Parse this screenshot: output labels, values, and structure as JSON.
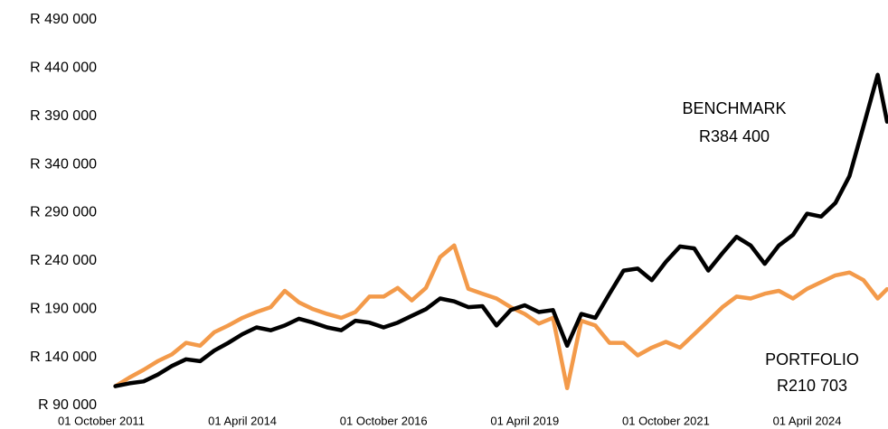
{
  "chart_data": {
    "type": "line",
    "x": [
      "2012-01",
      "2012-04",
      "2012-07",
      "2012-10",
      "2013-01",
      "2013-04",
      "2013-07",
      "2013-10",
      "2014-01",
      "2014-04",
      "2014-07",
      "2014-10",
      "2015-01",
      "2015-04",
      "2015-07",
      "2015-10",
      "2016-01",
      "2016-04",
      "2016-07",
      "2016-10",
      "2017-01",
      "2017-04",
      "2017-07",
      "2017-10",
      "2018-01",
      "2018-04",
      "2018-07",
      "2018-10",
      "2019-01",
      "2019-04",
      "2019-07",
      "2019-10",
      "2020-01",
      "2020-04",
      "2020-07",
      "2020-10",
      "2021-01",
      "2021-04",
      "2021-07",
      "2021-10",
      "2022-01",
      "2022-04",
      "2022-07",
      "2022-10",
      "2023-01",
      "2023-04",
      "2023-07",
      "2023-10",
      "2024-01",
      "2024-04",
      "2024-07",
      "2024-10",
      "2025-01",
      "2025-04",
      "2025-07",
      "2025-09"
    ],
    "series": [
      {
        "name": "PORTFOLIO",
        "color": "#f39a4a",
        "values": [
          110000,
          119000,
          127000,
          136000,
          143000,
          155000,
          152000,
          166000,
          173000,
          181000,
          187000,
          192000,
          209000,
          197000,
          190000,
          185000,
          181000,
          187000,
          203000,
          203000,
          212000,
          199000,
          212000,
          244000,
          256000,
          211000,
          206000,
          201000,
          192000,
          185000,
          175000,
          181000,
          108000,
          178000,
          173000,
          155000,
          155000,
          142000,
          150000,
          156000,
          150000,
          164000,
          178000,
          192000,
          203000,
          201000,
          206000,
          209000,
          201000,
          211000,
          218000,
          225000,
          228000,
          220000,
          201000,
          210703
        ]
      },
      {
        "name": "BENCHMARK",
        "color": "#000000",
        "values": [
          110000,
          113000,
          115000,
          122000,
          131000,
          138000,
          136000,
          147000,
          155000,
          164000,
          171000,
          168000,
          173000,
          180000,
          176000,
          171000,
          168000,
          178000,
          176000,
          171000,
          176000,
          183000,
          190000,
          201000,
          198000,
          192000,
          193000,
          173000,
          189000,
          194000,
          187000,
          189000,
          152000,
          185000,
          181000,
          206000,
          230000,
          232000,
          220000,
          239000,
          255000,
          253000,
          230000,
          248000,
          265000,
          256000,
          237000,
          256000,
          267000,
          289000,
          286000,
          300000,
          328000,
          380000,
          433000,
          384400
        ]
      }
    ],
    "annotations": [
      "R384 400",
      "R210 703"
    ],
    "xlim": [
      "2011-10-01",
      "2025-09-01"
    ],
    "xticks": [
      {
        "value": "2011-10-01",
        "label": "01 October 2011"
      },
      {
        "value": "2014-04-01",
        "label": "01 April 2014"
      },
      {
        "value": "2016-10-01",
        "label": "01 October 2016"
      },
      {
        "value": "2019-04-01",
        "label": "01 April 2019"
      },
      {
        "value": "2021-10-01",
        "label": "01 October 2021"
      },
      {
        "value": "2024-04-01",
        "label": "01 April 2024"
      }
    ],
    "ylim": [
      90000,
      490000
    ],
    "yticks": [
      {
        "value": 90000,
        "label": "R 90 000"
      },
      {
        "value": 140000,
        "label": "R 140 000"
      },
      {
        "value": 190000,
        "label": "R 190 000"
      },
      {
        "value": 240000,
        "label": "R 240 000"
      },
      {
        "value": 290000,
        "label": "R 290 000"
      },
      {
        "value": 340000,
        "label": "R 340 000"
      },
      {
        "value": 390000,
        "label": "R 390 000"
      },
      {
        "value": 440000,
        "label": "R 440 000"
      },
      {
        "value": 490000,
        "label": "R 490 000"
      }
    ],
    "grid": false
  }
}
